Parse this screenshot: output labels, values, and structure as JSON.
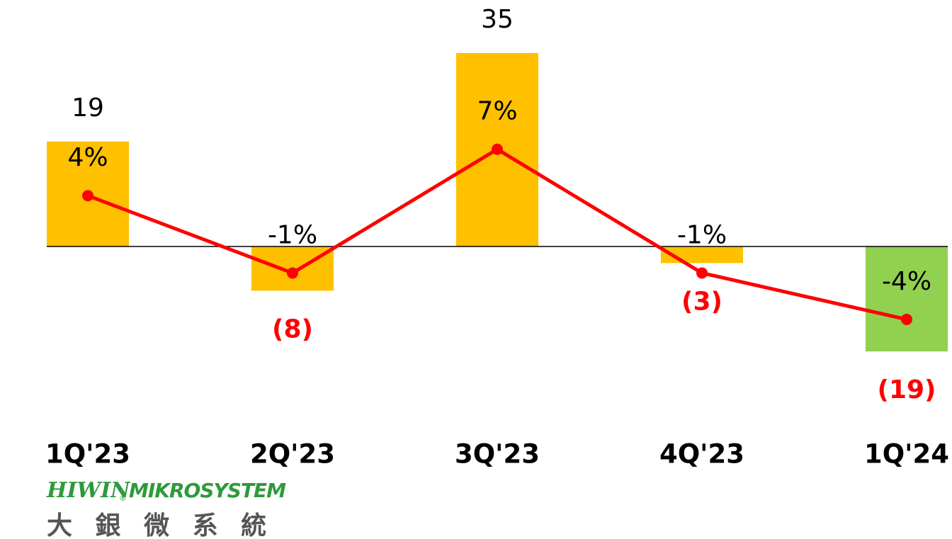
{
  "chart_data": {
    "type": "bar",
    "categories": [
      "1Q'23",
      "2Q'23",
      "3Q'23",
      "4Q'23",
      "1Q'24"
    ],
    "series": [
      {
        "type": "bar",
        "values": [
          19,
          -8,
          35,
          -3,
          -19
        ],
        "value_labels": [
          "19",
          "(8)",
          "35",
          "(3)",
          "(19)"
        ],
        "colors": [
          "#FFC000",
          "#FFC000",
          "#FFC000",
          "#FFC000",
          "#92D050"
        ]
      },
      {
        "type": "line",
        "axis": "y2",
        "color": "#FF0000",
        "values": [
          4,
          -1,
          7,
          -1,
          -4
        ],
        "value_labels": [
          "4%",
          "-1%",
          "7%",
          "-1%",
          "-4%"
        ]
      }
    ],
    "ylim": [
      -30,
      40
    ],
    "y2lim": [
      -10,
      15
    ],
    "label_color": "#000000",
    "negative_label_color": "#FF0000"
  },
  "logo": {
    "brand": "HIWIN",
    "mark": "®",
    "name": "MIKROSYSTEM",
    "chinese": "大 銀 微 系 統"
  }
}
